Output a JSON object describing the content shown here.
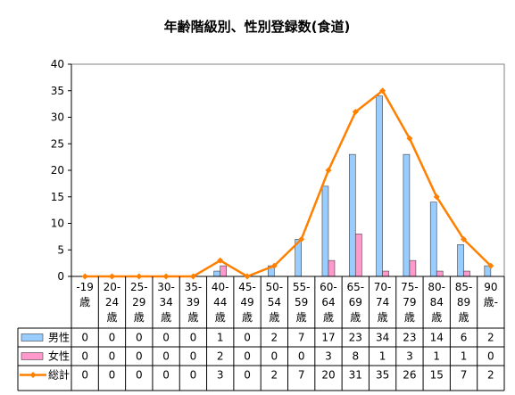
{
  "chart_data": {
    "type": "bar",
    "title": "年齢階級別、性別登録数(食道)",
    "categories": [
      [
        "-19",
        "歳"
      ],
      [
        "20-",
        "24",
        "歳"
      ],
      [
        "25-",
        "29",
        "歳"
      ],
      [
        "30-",
        "34",
        "歳"
      ],
      [
        "35-",
        "39",
        "歳"
      ],
      [
        "40-",
        "44",
        "歳"
      ],
      [
        "45-",
        "49",
        "歳"
      ],
      [
        "50-",
        "54",
        "歳"
      ],
      [
        "55-",
        "59",
        "歳"
      ],
      [
        "60-",
        "64",
        "歳"
      ],
      [
        "65-",
        "69",
        "歳"
      ],
      [
        "70-",
        "74",
        "歳"
      ],
      [
        "75-",
        "79",
        "歳"
      ],
      [
        "80-",
        "84",
        "歳"
      ],
      [
        "85-",
        "89",
        "歳"
      ],
      [
        "90",
        "歳-"
      ]
    ],
    "series": [
      {
        "name": "男性",
        "kind": "bar",
        "color": "#99ccff",
        "values": [
          0,
          0,
          0,
          0,
          0,
          1,
          0,
          2,
          7,
          17,
          23,
          34,
          23,
          14,
          6,
          2
        ]
      },
      {
        "name": "女性",
        "kind": "bar",
        "color": "#ff99cc",
        "values": [
          0,
          0,
          0,
          0,
          0,
          2,
          0,
          0,
          0,
          3,
          8,
          1,
          3,
          1,
          1,
          0
        ]
      },
      {
        "name": "総計",
        "kind": "line",
        "color": "#ff8000",
        "values": [
          0,
          0,
          0,
          0,
          0,
          3,
          0,
          2,
          7,
          20,
          31,
          35,
          26,
          15,
          7,
          2
        ]
      }
    ],
    "ylim": [
      0,
      40
    ],
    "yticks": [
      0,
      5,
      10,
      15,
      20,
      25,
      30,
      35,
      40
    ],
    "grid": false,
    "legend": "data-table"
  }
}
